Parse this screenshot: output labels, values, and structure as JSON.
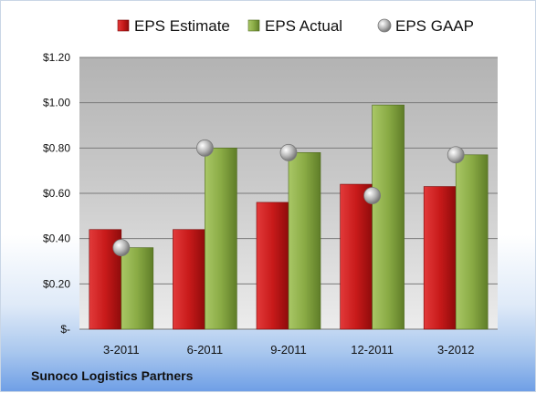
{
  "chart_data": {
    "type": "bar",
    "categories": [
      "3-2011",
      "6-2011",
      "9-2011",
      "12-2011",
      "3-2012"
    ],
    "series": [
      {
        "name": "EPS Estimate",
        "kind": "bar",
        "color": "#cc1f1f",
        "values": [
          0.44,
          0.44,
          0.56,
          0.64,
          0.63
        ]
      },
      {
        "name": "EPS Actual",
        "kind": "bar",
        "color": "#8fb04a",
        "values": [
          0.36,
          0.8,
          0.78,
          0.99,
          0.77
        ]
      },
      {
        "name": "EPS GAAP",
        "kind": "marker",
        "color": "#a6a6a6",
        "values": [
          0.36,
          0.8,
          0.78,
          0.59,
          0.77
        ]
      }
    ],
    "ylim": [
      0,
      1.2
    ],
    "yticks": [
      0,
      0.2,
      0.4,
      0.6,
      0.8,
      1.0,
      1.2
    ],
    "ytick_labels": [
      "$-",
      "$0.20",
      "$0.40",
      "$0.60",
      "$0.80",
      "$1.00",
      "$1.20"
    ],
    "grid": true,
    "legend_position": "top",
    "footer": "Sunoco Logistics Partners"
  }
}
